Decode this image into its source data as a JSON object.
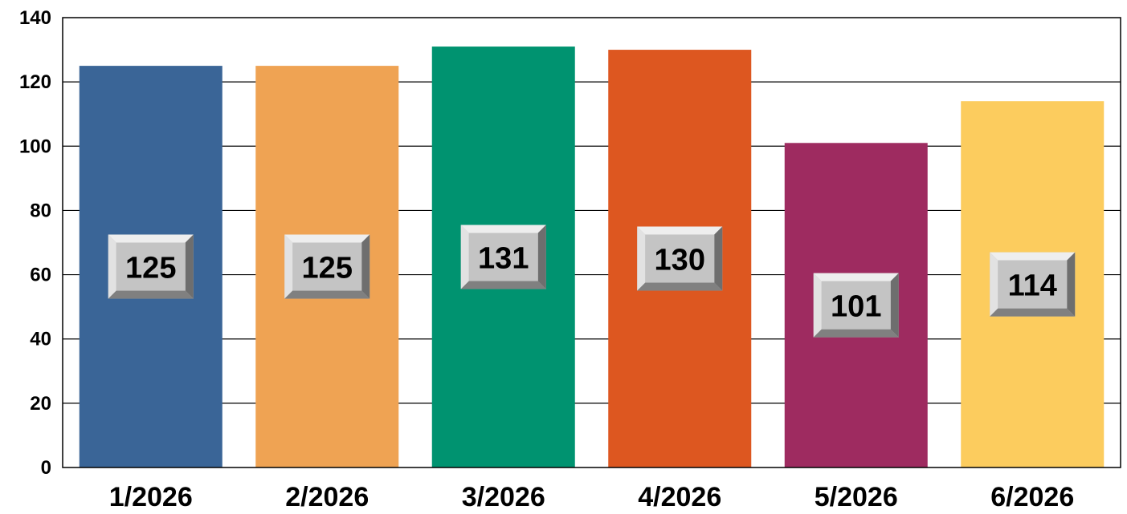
{
  "chart_data": {
    "type": "bar",
    "categories": [
      "1/2026",
      "2/2026",
      "3/2026",
      "4/2026",
      "5/2026",
      "6/2026"
    ],
    "values": [
      125,
      125,
      131,
      130,
      101,
      114
    ],
    "colors": [
      "#3a6597",
      "#efa353",
      "#009370",
      "#dd5720",
      "#9e2b60",
      "#fccc5e"
    ],
    "title": "",
    "xlabel": "",
    "ylabel": "",
    "ylim": [
      0,
      140
    ],
    "yticks": [
      0,
      20,
      40,
      60,
      80,
      100,
      120,
      140
    ],
    "grid": true,
    "legend": "none",
    "data_labels": true
  }
}
